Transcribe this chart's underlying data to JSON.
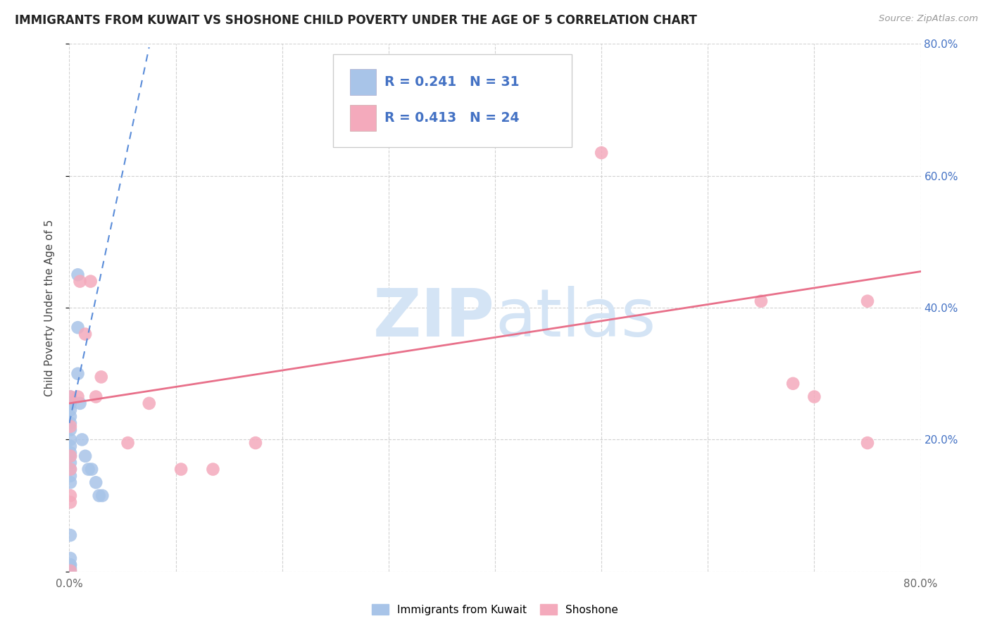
{
  "title": "IMMIGRANTS FROM KUWAIT VS SHOSHONE CHILD POVERTY UNDER THE AGE OF 5 CORRELATION CHART",
  "source": "Source: ZipAtlas.com",
  "ylabel": "Child Poverty Under the Age of 5",
  "xlim": [
    0.0,
    0.8
  ],
  "ylim": [
    0.0,
    0.8
  ],
  "xtick_vals": [
    0.0,
    0.1,
    0.2,
    0.3,
    0.4,
    0.5,
    0.6,
    0.7,
    0.8
  ],
  "ytick_vals": [
    0.0,
    0.2,
    0.4,
    0.6,
    0.8
  ],
  "xticklabels": [
    "0.0%",
    "",
    "",
    "",
    "",
    "",
    "",
    "",
    "80.0%"
  ],
  "yticklabels_right": [
    "",
    "20.0%",
    "40.0%",
    "60.0%",
    "80.0%"
  ],
  "blue_color": "#a8c4e8",
  "pink_color": "#f4aabc",
  "blue_line_color": "#5b8dd9",
  "pink_line_color": "#e8708a",
  "legend_text_color": "#4472c4",
  "watermark_color": "#d4e4f5",
  "background": "#ffffff",
  "r1": "0.241",
  "n1": "31",
  "r2": "0.413",
  "n2": "24",
  "label1": "Immigrants from Kuwait",
  "label2": "Shoshone",
  "blue_points_x": [
    0.001,
    0.001,
    0.001,
    0.001,
    0.001,
    0.001,
    0.001,
    0.001,
    0.001,
    0.001,
    0.001,
    0.001,
    0.001,
    0.001,
    0.001,
    0.001,
    0.001,
    0.001,
    0.001,
    0.008,
    0.008,
    0.008,
    0.01,
    0.012,
    0.015,
    0.018,
    0.021,
    0.025,
    0.028,
    0.031,
    0.001
  ],
  "blue_points_y": [
    0.265,
    0.255,
    0.245,
    0.235,
    0.225,
    0.215,
    0.2,
    0.19,
    0.18,
    0.175,
    0.165,
    0.155,
    0.145,
    0.135,
    0.055,
    0.02,
    0.01,
    0.005,
    0.001,
    0.45,
    0.37,
    0.3,
    0.255,
    0.2,
    0.175,
    0.155,
    0.155,
    0.135,
    0.115,
    0.115,
    0.01
  ],
  "pink_points_x": [
    0.001,
    0.001,
    0.001,
    0.001,
    0.001,
    0.001,
    0.008,
    0.01,
    0.015,
    0.02,
    0.025,
    0.03,
    0.055,
    0.075,
    0.105,
    0.135,
    0.175,
    0.5,
    0.65,
    0.68,
    0.7,
    0.75,
    0.75,
    0.001
  ],
  "pink_points_y": [
    0.265,
    0.22,
    0.175,
    0.155,
    0.115,
    0.105,
    0.265,
    0.44,
    0.36,
    0.44,
    0.265,
    0.295,
    0.195,
    0.255,
    0.155,
    0.155,
    0.195,
    0.635,
    0.41,
    0.285,
    0.265,
    0.41,
    0.195,
    0.001
  ],
  "blue_trend_x0": 0.0,
  "blue_trend_x1": 0.075,
  "blue_trend_y0": 0.225,
  "blue_trend_y1": 0.795,
  "pink_trend_x0": 0.0,
  "pink_trend_x1": 0.8,
  "pink_trend_y0": 0.255,
  "pink_trend_y1": 0.455
}
